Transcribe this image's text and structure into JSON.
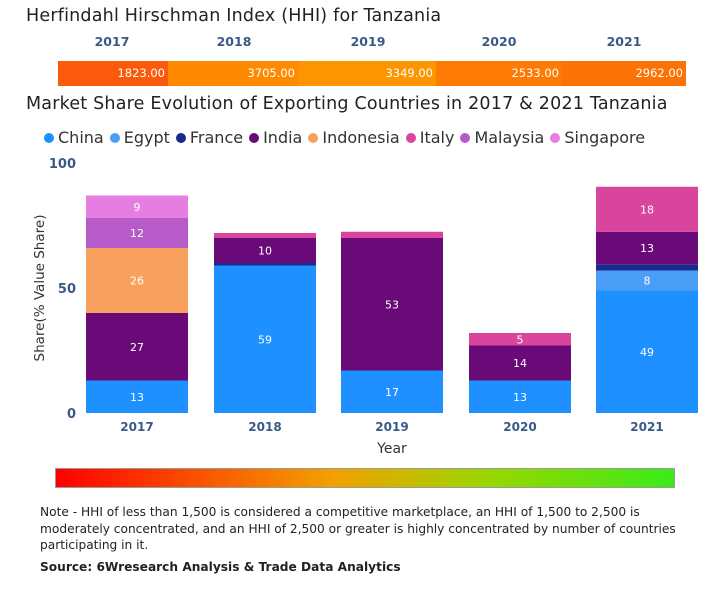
{
  "hhi": {
    "title": "Herfindahl Hirschman Index (HHI) for Tanzania",
    "years": [
      "2017",
      "2018",
      "2019",
      "2020",
      "2021"
    ],
    "values": [
      "1823.00",
      "3705.00",
      "3349.00",
      "2533.00",
      "2962.00"
    ],
    "colors": [
      "#fb5a0c",
      "#fd8a00",
      "#fd9500",
      "#fd7a05",
      "#fd7205"
    ]
  },
  "chart_data": {
    "type": "bar",
    "stacked": true,
    "title": "Market Share Evolution of Exporting Countries in 2017 & 2021 Tanzania",
    "xlabel": "Year",
    "ylabel": "Share(% Value Share)",
    "ylim": [
      0,
      100
    ],
    "yticks": [
      "0",
      "50",
      "100"
    ],
    "categories": [
      "2017",
      "2018",
      "2019",
      "2020",
      "2021"
    ],
    "series": [
      {
        "name": "China",
        "color": "#1e90ff",
        "values": [
          13,
          59,
          17,
          13,
          49
        ],
        "labels": [
          "13",
          "59",
          "17",
          "13",
          "49"
        ]
      },
      {
        "name": "Egypt",
        "color": "#4b9ef5",
        "values": [
          0,
          0,
          0,
          0,
          8
        ],
        "labels": [
          "",
          "",
          "",
          "",
          "8"
        ]
      },
      {
        "name": "France",
        "color": "#1a2a8c",
        "values": [
          0,
          1,
          0,
          0,
          2.5
        ],
        "labels": [
          "",
          "",
          "",
          "",
          ""
        ]
      },
      {
        "name": "India",
        "color": "#6a0a78",
        "values": [
          27,
          10,
          53,
          14,
          13
        ],
        "labels": [
          "27",
          "10",
          "53",
          "14",
          "13"
        ]
      },
      {
        "name": "Indonesia",
        "color": "#f8a15e",
        "values": [
          26,
          0,
          0,
          0,
          0
        ],
        "labels": [
          "26",
          "",
          "",
          "",
          ""
        ]
      },
      {
        "name": "Italy",
        "color": "#d9459c",
        "values": [
          0,
          2,
          2.5,
          5,
          18
        ],
        "labels": [
          "",
          "",
          "",
          "5",
          "18"
        ]
      },
      {
        "name": "Malaysia",
        "color": "#b75bc8",
        "values": [
          12,
          0,
          0,
          0,
          0
        ],
        "labels": [
          "12",
          "",
          "",
          "",
          ""
        ]
      },
      {
        "name": "Singapore",
        "color": "#e67de0",
        "values": [
          9,
          0,
          0,
          0,
          0
        ],
        "labels": [
          "9",
          "",
          "",
          "",
          ""
        ]
      }
    ]
  },
  "legend_marker": "●",
  "note": "Note - HHI of less than 1,500 is considered a competitive marketplace, an HHI of 1,500 to 2,500 is moderately concentrated, and an HHI of 2,500 or greater is highly concentrated by number of countries participating in it.",
  "source": "Source: 6Wresearch Analysis & Trade Data Analytics"
}
